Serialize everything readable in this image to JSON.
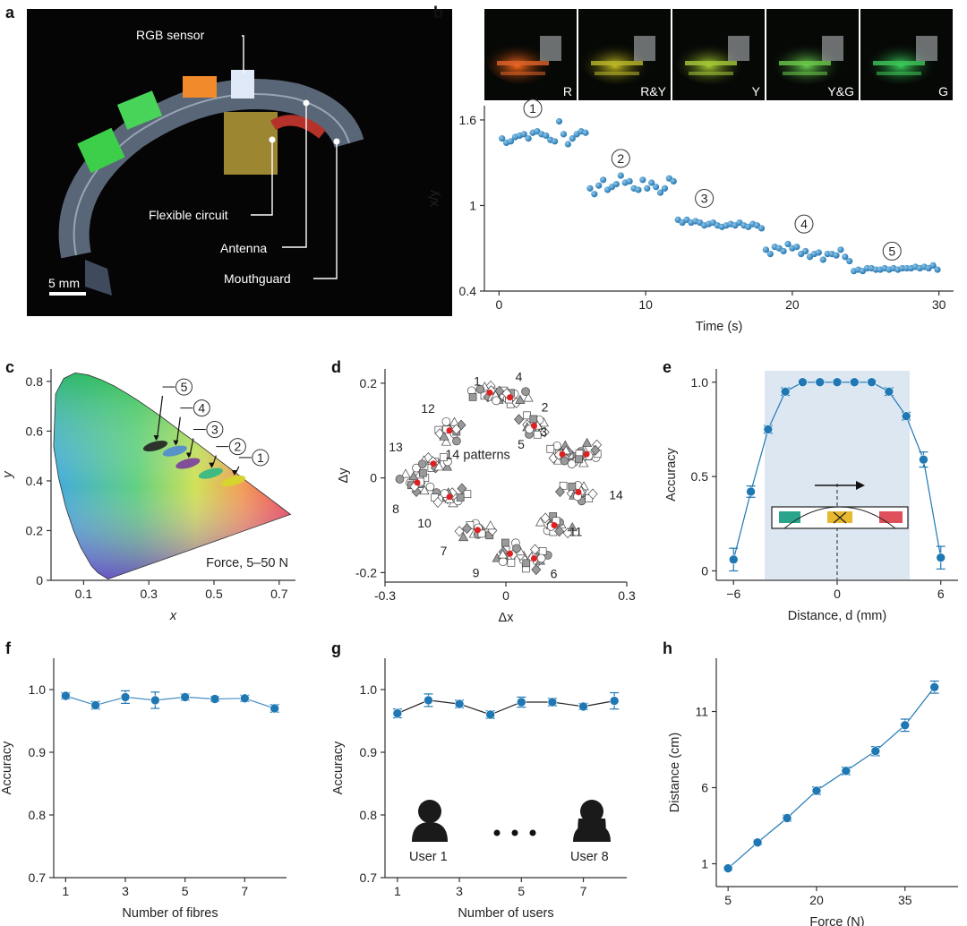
{
  "panels": {
    "a": {
      "label": "a",
      "callouts": [
        "RGB sensor",
        "Flexible circuit",
        "Antenna",
        "Mouthguard"
      ],
      "scale_bar": "5 mm"
    },
    "b": {
      "label": "b",
      "strip_labels": [
        "R",
        "R&Y",
        "Y",
        "Y&G",
        "G"
      ],
      "strip_colors": [
        "#e0642a",
        "#b9b62c",
        "#a6c93a",
        "#6bc94a",
        "#3fc85a"
      ],
      "group_markers": [
        "1",
        "2",
        "3",
        "4",
        "5"
      ]
    },
    "c": {
      "label": "c",
      "annotation": "Force, 5–50 N",
      "markers": [
        "5",
        "4",
        "3",
        "2",
        "1"
      ]
    },
    "d": {
      "label": "d",
      "annotation": "14 patterns",
      "point_labels": [
        "1",
        "2",
        "3",
        "4",
        "5",
        "6",
        "7",
        "8",
        "9",
        "10",
        "11",
        "12",
        "13",
        "14"
      ]
    },
    "e": {
      "label": "e"
    },
    "f": {
      "label": "f"
    },
    "g": {
      "label": "g",
      "users": [
        "User 1",
        "User 8"
      ]
    },
    "h": {
      "label": "h"
    }
  },
  "colors": {
    "accent": "#1f78b4",
    "light": "#5ea8d8"
  },
  "chart_data": [
    {
      "id": "b",
      "type": "scatter",
      "xlabel": "Time (s)",
      "ylabel": "x/y",
      "xlim": [
        -1,
        31
      ],
      "ylim": [
        0.4,
        1.7
      ],
      "xticks": [
        0,
        10,
        20,
        30
      ],
      "yticks": [
        0.4,
        1.0,
        1.6
      ],
      "groups": [
        {
          "name": "1",
          "x": [
            0.2,
            0.5,
            0.8,
            1.1,
            1.4,
            1.7,
            2.0,
            2.3,
            2.6,
            2.9,
            3.2,
            3.5,
            3.8,
            4.1,
            4.4,
            4.7,
            5.0,
            5.3,
            5.6,
            5.9
          ],
          "y": [
            1.47,
            1.44,
            1.45,
            1.48,
            1.49,
            1.5,
            1.47,
            1.51,
            1.52,
            1.5,
            1.49,
            1.46,
            1.45,
            1.59,
            1.5,
            1.43,
            1.47,
            1.5,
            1.52,
            1.51
          ]
        },
        {
          "name": "2",
          "x": [
            6.2,
            6.5,
            6.8,
            7.1,
            7.4,
            7.7,
            8.0,
            8.3,
            8.6,
            8.9,
            9.2,
            9.5,
            9.8,
            10.1,
            10.4,
            10.7,
            11.0,
            11.3,
            11.6,
            11.9
          ],
          "y": [
            1.12,
            1.08,
            1.14,
            1.18,
            1.11,
            1.13,
            1.15,
            1.21,
            1.16,
            1.17,
            1.12,
            1.11,
            1.18,
            1.12,
            1.16,
            1.13,
            1.09,
            1.12,
            1.19,
            1.17
          ]
        },
        {
          "name": "3",
          "x": [
            12.2,
            12.5,
            12.8,
            13.1,
            13.4,
            13.7,
            14.0,
            14.3,
            14.6,
            14.9,
            15.2,
            15.5,
            15.8,
            16.1,
            16.4,
            16.7,
            17.0,
            17.3,
            17.6,
            17.9
          ],
          "y": [
            0.9,
            0.88,
            0.9,
            0.88,
            0.89,
            0.88,
            0.86,
            0.87,
            0.88,
            0.86,
            0.85,
            0.86,
            0.87,
            0.86,
            0.88,
            0.86,
            0.85,
            0.87,
            0.86,
            0.84
          ]
        },
        {
          "name": "4",
          "x": [
            18.2,
            18.5,
            18.8,
            19.1,
            19.4,
            19.7,
            20.0,
            20.3,
            20.6,
            20.9,
            21.2,
            21.5,
            21.8,
            22.1,
            22.4,
            22.7,
            23.0,
            23.3,
            23.6,
            23.9
          ],
          "y": [
            0.69,
            0.66,
            0.71,
            0.7,
            0.68,
            0.73,
            0.7,
            0.71,
            0.66,
            0.68,
            0.64,
            0.66,
            0.67,
            0.62,
            0.66,
            0.66,
            0.65,
            0.69,
            0.64,
            0.61
          ]
        },
        {
          "name": "5",
          "x": [
            24.2,
            24.5,
            24.8,
            25.1,
            25.4,
            25.7,
            26.0,
            26.3,
            26.6,
            26.9,
            27.2,
            27.5,
            27.8,
            28.1,
            28.4,
            28.7,
            29.0,
            29.3,
            29.6,
            29.9
          ],
          "y": [
            0.54,
            0.55,
            0.54,
            0.56,
            0.56,
            0.55,
            0.55,
            0.56,
            0.55,
            0.56,
            0.55,
            0.56,
            0.56,
            0.56,
            0.57,
            0.56,
            0.57,
            0.56,
            0.58,
            0.55
          ]
        }
      ]
    },
    {
      "id": "c",
      "type": "scatter",
      "xlabel": "x",
      "ylabel": "y",
      "xlim": [
        0,
        0.75
      ],
      "ylim": [
        0,
        0.85
      ],
      "xticks": [
        0.1,
        0.3,
        0.5,
        0.7
      ],
      "yticks": [
        0,
        0.2,
        0.4,
        0.6,
        0.8
      ],
      "clusters": [
        {
          "name": "1",
          "x": 0.56,
          "y": 0.4,
          "color": "#d4d82a"
        },
        {
          "name": "2",
          "x": 0.49,
          "y": 0.43,
          "color": "#2fb887"
        },
        {
          "name": "3",
          "x": 0.42,
          "y": 0.47,
          "color": "#7a3fa0"
        },
        {
          "name": "4",
          "x": 0.38,
          "y": 0.52,
          "color": "#4e8bd0"
        },
        {
          "name": "5",
          "x": 0.32,
          "y": 0.54,
          "color": "#222222"
        }
      ]
    },
    {
      "id": "d",
      "type": "scatter",
      "xlabel": "Δx",
      "ylabel": "Δy",
      "xlim": [
        -0.3,
        0.3
      ],
      "ylim": [
        -0.22,
        0.23
      ],
      "xticks": [
        -0.3,
        0,
        0.3
      ],
      "yticks": [
        -0.2,
        0,
        0.2
      ],
      "centers": [
        {
          "name": "1",
          "x": -0.04,
          "y": 0.18
        },
        {
          "name": "2",
          "x": 0.07,
          "y": 0.11
        },
        {
          "name": "3",
          "x": 0.2,
          "y": 0.05
        },
        {
          "name": "4",
          "x": 0.01,
          "y": 0.17
        },
        {
          "name": "5",
          "x": 0.14,
          "y": 0.05
        },
        {
          "name": "6",
          "x": 0.07,
          "y": -0.17
        },
        {
          "name": "7",
          "x": -0.07,
          "y": -0.11
        },
        {
          "name": "8",
          "x": -0.22,
          "y": -0.01
        },
        {
          "name": "9",
          "x": 0.01,
          "y": -0.16
        },
        {
          "name": "10",
          "x": -0.14,
          "y": -0.04
        },
        {
          "name": "11",
          "x": 0.12,
          "y": -0.1
        },
        {
          "name": "12",
          "x": -0.14,
          "y": 0.1
        },
        {
          "name": "13",
          "x": -0.18,
          "y": 0.03
        },
        {
          "name": "14",
          "x": 0.18,
          "y": -0.03
        }
      ]
    },
    {
      "id": "e",
      "type": "line",
      "xlabel": "Distance, d (mm)",
      "ylabel": "Accuracy",
      "xlim": [
        -7,
        7
      ],
      "ylim": [
        -0.05,
        1.07
      ],
      "xticks": [
        -6,
        0,
        6
      ],
      "yticks": [
        0,
        0.5,
        1.0
      ],
      "x": [
        -6,
        -5,
        -4,
        -3,
        -2,
        -1,
        0,
        1,
        2,
        3,
        4,
        5,
        6
      ],
      "y": [
        0.06,
        0.42,
        0.75,
        0.95,
        1.0,
        1.0,
        1.0,
        1.0,
        1.0,
        0.95,
        0.82,
        0.59,
        0.07
      ],
      "err": [
        0.06,
        0.03,
        0.02,
        0.02,
        0.01,
        0.01,
        0.01,
        0.01,
        0.01,
        0.02,
        0.02,
        0.04,
        0.06
      ],
      "shade": [
        -4.2,
        4.2
      ]
    },
    {
      "id": "f",
      "type": "line",
      "xlabel": "Number of fibres",
      "ylabel": "Accuracy",
      "xlim": [
        0.6,
        8.4
      ],
      "ylim": [
        0.7,
        1.05
      ],
      "xticks": [
        1,
        3,
        5,
        7
      ],
      "yticks": [
        0.7,
        0.8,
        0.9,
        1.0
      ],
      "x": [
        1,
        2,
        3,
        4,
        5,
        6,
        7,
        8
      ],
      "y": [
        0.99,
        0.975,
        0.988,
        0.983,
        0.988,
        0.985,
        0.986,
        0.97
      ],
      "err": [
        0.005,
        0.006,
        0.01,
        0.013,
        0.005,
        0.004,
        0.005,
        0.006
      ]
    },
    {
      "id": "g",
      "type": "line",
      "xlabel": "Number of users",
      "ylabel": "Accuracy",
      "xlim": [
        0.6,
        8.4
      ],
      "ylim": [
        0.7,
        1.05
      ],
      "xticks": [
        1,
        3,
        5,
        7
      ],
      "yticks": [
        0.7,
        0.8,
        0.9,
        1.0
      ],
      "x": [
        1,
        2,
        3,
        4,
        5,
        6,
        7,
        8
      ],
      "y": [
        0.962,
        0.983,
        0.977,
        0.96,
        0.98,
        0.98,
        0.973,
        0.982
      ],
      "err": [
        0.007,
        0.01,
        0.006,
        0.006,
        0.008,
        0.006,
        0.005,
        0.013
      ]
    },
    {
      "id": "h",
      "type": "line",
      "xlabel": "Force (N)",
      "ylabel": "Distance (cm)",
      "xlim": [
        3,
        44
      ],
      "ylim": [
        -0.5,
        14.5
      ],
      "xticks": [
        5,
        20,
        35
      ],
      "yticks": [
        1,
        6,
        11
      ],
      "x": [
        5,
        10,
        15,
        20,
        25,
        30,
        35,
        40
      ],
      "y": [
        0.7,
        2.4,
        4.0,
        5.8,
        7.1,
        8.4,
        10.1,
        12.6
      ],
      "err": [
        0.1,
        0.15,
        0.2,
        0.25,
        0.25,
        0.3,
        0.4,
        0.4
      ]
    }
  ]
}
